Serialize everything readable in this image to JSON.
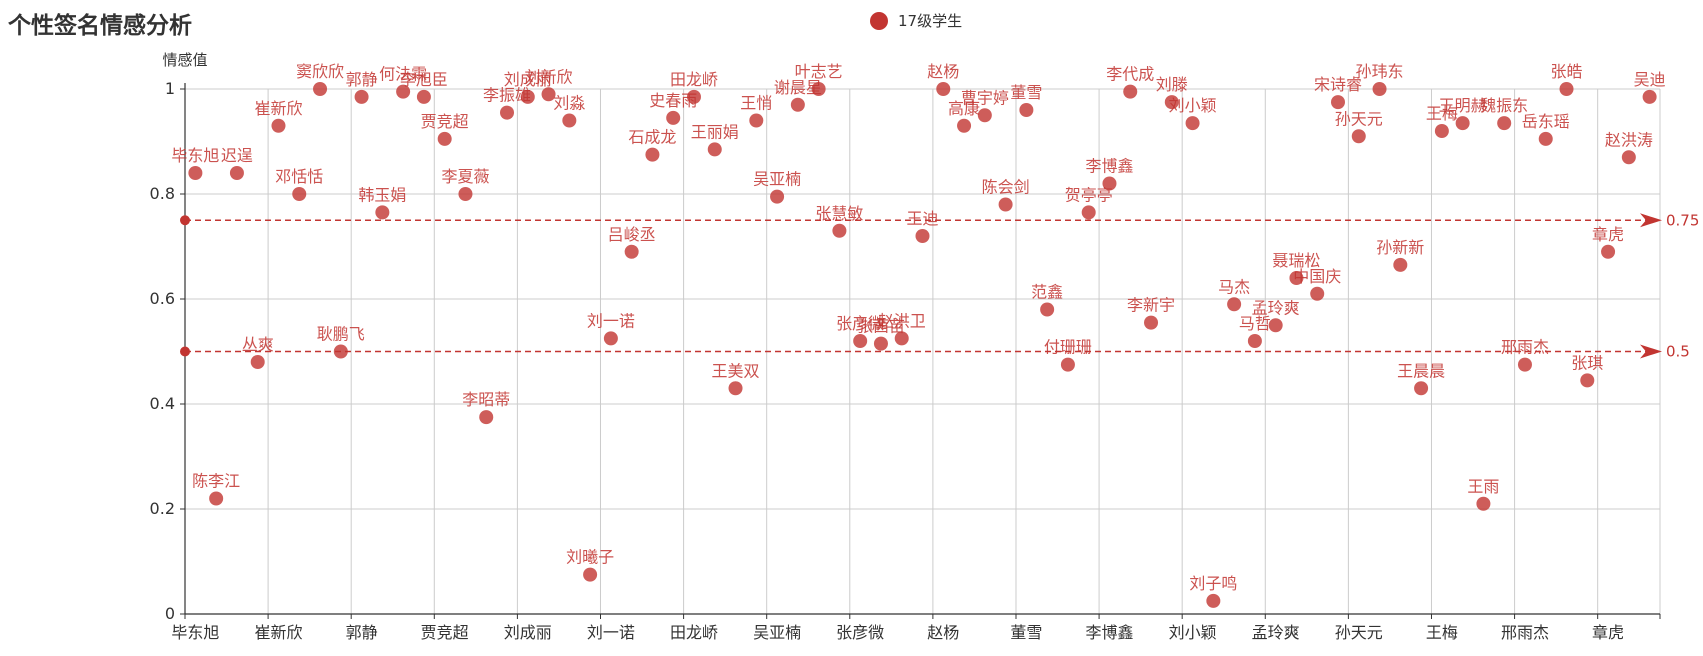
{
  "chart_data": {
    "type": "scatter",
    "title": "个性签名情感分析",
    "ylabel": "情感值",
    "ylim": [
      0,
      1
    ],
    "yticks": [
      0,
      0.2,
      0.4,
      0.6,
      0.8,
      1
    ],
    "ytick_labels": [
      "0",
      "0.2",
      "0.4",
      "0.6",
      "0.8",
      "1"
    ],
    "xtick_labels": [
      "毕东旭",
      "崔新欣",
      "郭静",
      "贾竞超",
      "刘成丽",
      "刘一诺",
      "田龙峤",
      "吴亚楠",
      "张彦微",
      "赵杨",
      "董雪",
      "李博鑫",
      "刘小颖",
      "孟玲爽",
      "孙天元",
      "王梅",
      "邢雨杰",
      "章虎"
    ],
    "series": [
      {
        "name": "17级学生",
        "points": [
          {
            "x": "毕东旭",
            "y": 0.84
          },
          {
            "x": "陈李江",
            "y": 0.22
          },
          {
            "x": "迟逞",
            "y": 0.84
          },
          {
            "x": "丛爽",
            "y": 0.48
          },
          {
            "x": "崔新欣",
            "y": 0.93
          },
          {
            "x": "邓恬恬",
            "y": 0.8
          },
          {
            "x": "窦欣欣",
            "y": 1.0
          },
          {
            "x": "耿鹏飞",
            "y": 0.5
          },
          {
            "x": "郭静",
            "y": 0.985
          },
          {
            "x": "韩玉娟",
            "y": 0.765
          },
          {
            "x": "何法霖",
            "y": 0.995
          },
          {
            "x": "李旭臣",
            "y": 0.985
          },
          {
            "x": "贾竞超",
            "y": 0.905
          },
          {
            "x": "李夏薇",
            "y": 0.8
          },
          {
            "x": "李昭蒂",
            "y": 0.375
          },
          {
            "x": "李振雄",
            "y": 0.955
          },
          {
            "x": "刘成丽",
            "y": 0.985
          },
          {
            "x": "刘新欣",
            "y": 0.99
          },
          {
            "x": "刘淼",
            "y": 0.94
          },
          {
            "x": "刘曦子",
            "y": 0.075
          },
          {
            "x": "刘一诺",
            "y": 0.525
          },
          {
            "x": "吕峻丞",
            "y": 0.69
          },
          {
            "x": "石成龙",
            "y": 0.875
          },
          {
            "x": "史春雨",
            "y": 0.945
          },
          {
            "x": "田龙峤",
            "y": 0.985
          },
          {
            "x": "王丽娟",
            "y": 0.885
          },
          {
            "x": "王美双",
            "y": 0.43
          },
          {
            "x": "王悄",
            "y": 0.94
          },
          {
            "x": "吴亚楠",
            "y": 0.795
          },
          {
            "x": "谢晨星",
            "y": 0.97
          },
          {
            "x": "叶志艺",
            "y": 1.0
          },
          {
            "x": "张慧敏",
            "y": 0.73
          },
          {
            "x": "张彦微",
            "y": 0.52
          },
          {
            "x": "张茜苗",
            "y": 0.515
          },
          {
            "x": "赵洪卫",
            "y": 0.525
          },
          {
            "x": "王迪",
            "y": 0.72
          },
          {
            "x": "赵杨",
            "y": 1.0
          },
          {
            "x": "高康",
            "y": 0.93
          },
          {
            "x": "曹宇婷",
            "y": 0.95
          },
          {
            "x": "陈会剑",
            "y": 0.78
          },
          {
            "x": "董雪",
            "y": 0.96
          },
          {
            "x": "范鑫",
            "y": 0.58
          },
          {
            "x": "付珊珊",
            "y": 0.475
          },
          {
            "x": "贺亭亭",
            "y": 0.765
          },
          {
            "x": "李博鑫",
            "y": 0.82
          },
          {
            "x": "李代成",
            "y": 0.995
          },
          {
            "x": "李新宇",
            "y": 0.555
          },
          {
            "x": "刘滕",
            "y": 0.975
          },
          {
            "x": "刘小颖",
            "y": 0.935
          },
          {
            "x": "刘子鸣",
            "y": 0.025
          },
          {
            "x": "马杰",
            "y": 0.59
          },
          {
            "x": "马哲",
            "y": 0.52
          },
          {
            "x": "孟玲爽",
            "y": 0.55
          },
          {
            "x": "聂瑞松",
            "y": 0.64
          },
          {
            "x": "中国庆",
            "y": 0.61
          },
          {
            "x": "宋诗睿",
            "y": 0.975
          },
          {
            "x": "孙天元",
            "y": 0.91
          },
          {
            "x": "孙玮东",
            "y": 1.0
          },
          {
            "x": "孙新新",
            "y": 0.665
          },
          {
            "x": "王晨晨",
            "y": 0.43
          },
          {
            "x": "王梅",
            "y": 0.92
          },
          {
            "x": "王明赫",
            "y": 0.935
          },
          {
            "x": "王雨",
            "y": 0.21
          },
          {
            "x": "魏振东",
            "y": 0.935
          },
          {
            "x": "邢雨杰",
            "y": 0.475
          },
          {
            "x": "岳东瑶",
            "y": 0.905
          },
          {
            "x": "张皓",
            "y": 1.0
          },
          {
            "x": "张琪",
            "y": 0.445
          },
          {
            "x": "章虎",
            "y": 0.69
          },
          {
            "x": "赵洪涛",
            "y": 0.87
          },
          {
            "x": "吴迪",
            "y": 0.985
          }
        ]
      }
    ],
    "mark_lines": [
      0.75,
      0.5
    ],
    "mark_line_labels": [
      "0.75",
      "0.5"
    ],
    "grid": true,
    "legend_position": "top-center"
  },
  "colors": {
    "point": "#c23531",
    "text": "#333333",
    "grid": "#cccccc",
    "axis": "#333333"
  }
}
